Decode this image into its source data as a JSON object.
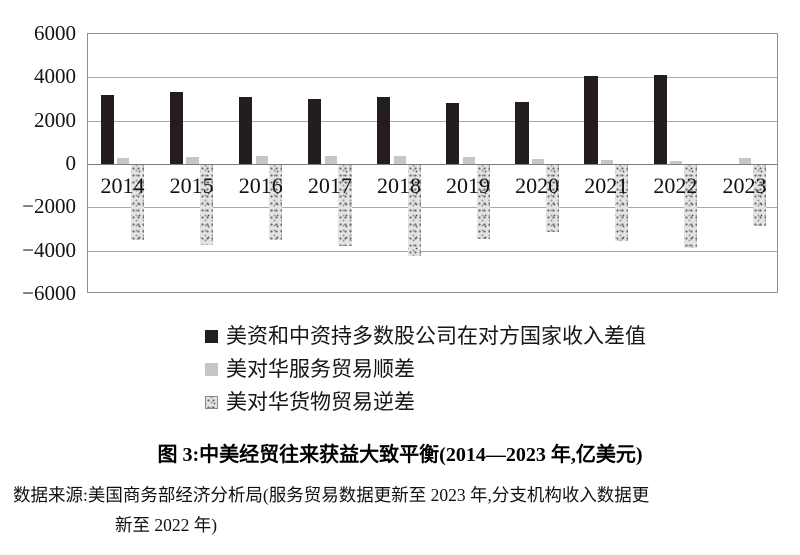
{
  "chart_data": {
    "type": "bar",
    "title": "图 3:中美经贸往来获益大致平衡(2014—2023 年,亿美元)",
    "unit": "亿美元",
    "categories": [
      "2014",
      "2015",
      "2016",
      "2017",
      "2018",
      "2019",
      "2020",
      "2021",
      "2022",
      "2023"
    ],
    "series": [
      {
        "name": "美资和中资持多数股公司在对方国家收入差值",
        "style": "solid-black",
        "color": "#241d1d",
        "values": [
          3170,
          3330,
          3100,
          3000,
          3100,
          2800,
          2850,
          4050,
          4100,
          null
        ]
      },
      {
        "name": "美对华服务贸易顺差",
        "style": "solid-gray",
        "color": "#c6c6c6",
        "values": [
          270,
          310,
          370,
          390,
          380,
          340,
          250,
          170,
          130,
          270
        ]
      },
      {
        "name": "美对华货物贸易逆差",
        "style": "speckled",
        "color": "#e3e3e3",
        "values": [
          -3450,
          -3670,
          -3470,
          -3750,
          -4180,
          -3430,
          -3100,
          -3530,
          -3820,
          -2830
        ]
      }
    ],
    "ylim": [
      -6000,
      6000
    ],
    "ytick_interval": 2000,
    "yticks": [
      "6000",
      "4000",
      "2000",
      "0",
      "−2000",
      "−4000",
      "−6000"
    ],
    "grid": true,
    "legend_position": "bottom"
  },
  "caption": {
    "title": "图 3:中美经贸往来获益大致平衡(2014—2023 年,亿美元)",
    "source_line1": "数据来源:美国商务部经济分析局(服务贸易数据更新至 2023 年,分支机构收入数据更",
    "source_line2": "新至 2022 年)"
  }
}
